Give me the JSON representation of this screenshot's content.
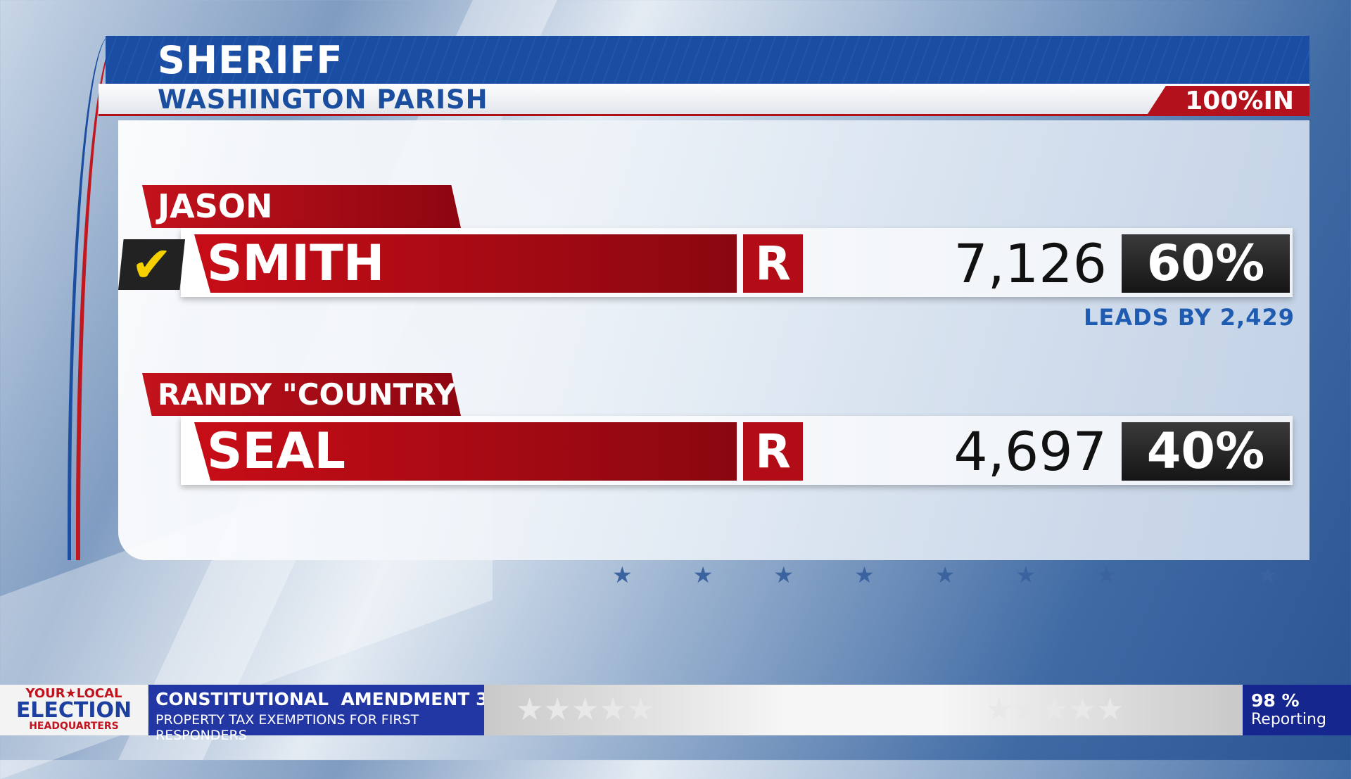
{
  "race": {
    "title": "SHERIFF",
    "area": "WASHINGTON PARISH",
    "reporting": "100%IN"
  },
  "candidates": [
    {
      "first": "JASON",
      "last": "SMITH",
      "party": "R",
      "votes": "7,126",
      "pct": "60%",
      "winner": true,
      "note": "LEADS BY 2,429"
    },
    {
      "first": "RANDY \"COUNTRY\"",
      "last": "SEAL",
      "party": "R",
      "votes": "4,697",
      "pct": "40%",
      "winner": false
    }
  ],
  "ticker": {
    "logo": {
      "line1": "YOUR★LOCAL",
      "line2": "ELECTION",
      "line3": "HEADQUARTERS"
    },
    "title": "CONSTITUTIONAL  AMENDMENT 3",
    "subtitle": "PROPERTY TAX EXEMPTIONS FOR FIRST RESPONDERS",
    "reporting_pct": "98 %",
    "reporting_label": "Reporting"
  },
  "colors": {
    "republican": "#b20d17",
    "header_blue": "#1b4ea3",
    "leads_blue": "#1f5bb0"
  }
}
